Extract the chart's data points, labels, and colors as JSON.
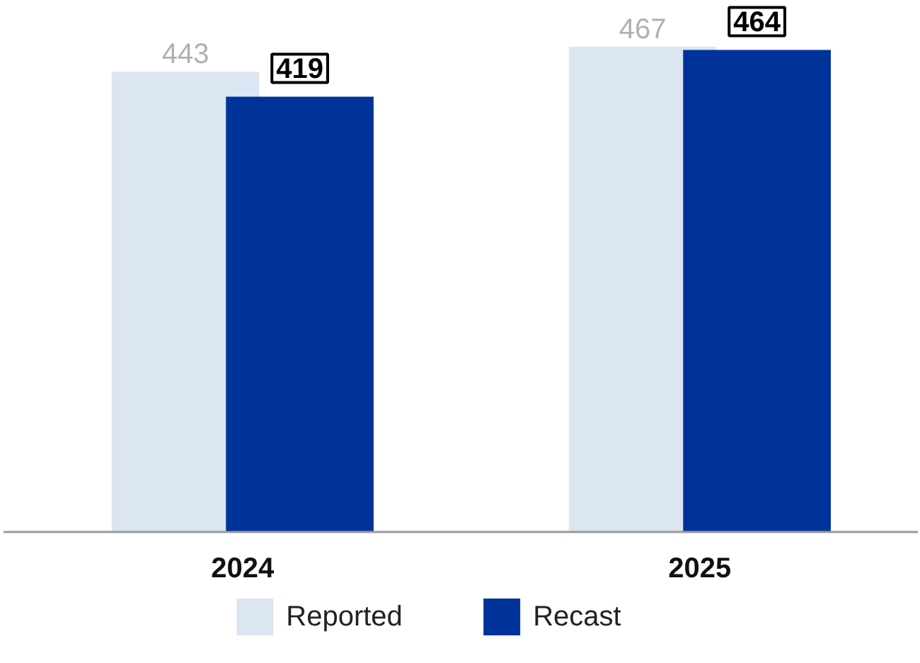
{
  "chart_data": {
    "type": "bar",
    "categories": [
      "2024",
      "2025"
    ],
    "series": [
      {
        "name": "Reported",
        "color": "#dce6f2",
        "values": [
          443,
          467
        ]
      },
      {
        "name": "Recast",
        "color": "#003399",
        "values": [
          419,
          464
        ]
      }
    ],
    "data_labels": true,
    "legend": "bottom"
  }
}
